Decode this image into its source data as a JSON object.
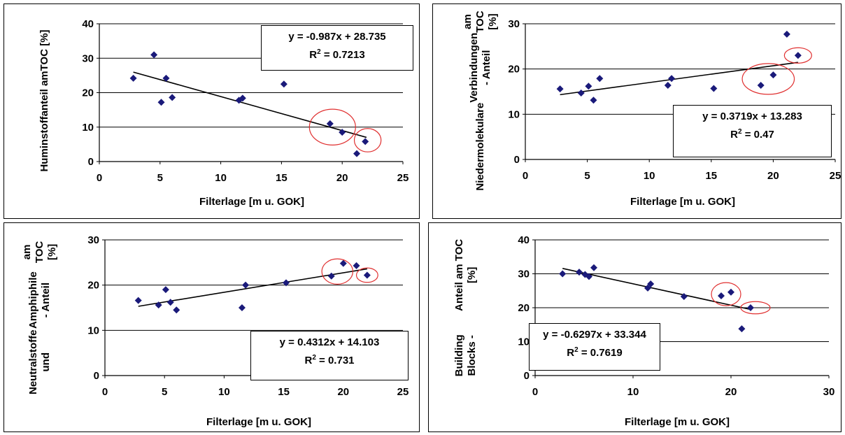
{
  "chart_data": [
    {
      "type": "scatter",
      "ylabel": [
        "Huminstoffanteil am",
        "TOC  [%]"
      ],
      "xlabel": "Filterlage [m u. GOK]",
      "xlim": [
        0,
        25
      ],
      "ylim": [
        0,
        40
      ],
      "xticks": [
        0,
        5,
        10,
        15,
        20,
        25
      ],
      "yticks": [
        0,
        10,
        20,
        30,
        40
      ],
      "x": [
        2.8,
        4.5,
        5.1,
        5.5,
        6.0,
        11.5,
        11.8,
        15.2,
        19.0,
        20.0,
        21.2,
        21.9
      ],
      "y": [
        24.2,
        31.0,
        17.2,
        24.2,
        18.6,
        17.8,
        18.4,
        22.5,
        11.0,
        8.5,
        2.3,
        5.8
      ],
      "trendline": {
        "slope": -0.987,
        "intercept": 28.735,
        "x_range": [
          2.8,
          22
        ]
      },
      "equation": "y = -0.987x + 28.735",
      "r2_label": "R",
      "r2_exp": "2",
      "r2_value": " = 0.7213",
      "highlights": [
        {
          "cx": 19.2,
          "cy": 10.0,
          "rx": 1.9,
          "ry": 5.2
        },
        {
          "cx": 22.1,
          "cy": 6.2,
          "rx": 1.1,
          "ry": 3.4
        }
      ],
      "colors": {
        "marker": "#1a1a7a",
        "trend": "#000000",
        "highlight": "#e03030",
        "grid": "#000000"
      }
    },
    {
      "type": "scatter",
      "ylabel": [
        "Niedermolekulare",
        "Verbindungen - Anteil",
        "am TOC  [%]"
      ],
      "xlabel": "Filterlage [m u. GOK]",
      "xlim": [
        0,
        25
      ],
      "ylim": [
        0,
        30
      ],
      "xticks": [
        0,
        5,
        10,
        15,
        20,
        25
      ],
      "yticks": [
        0,
        10,
        20,
        30
      ],
      "x": [
        2.8,
        4.5,
        5.1,
        5.5,
        6.0,
        11.5,
        11.8,
        15.2,
        19.0,
        20.0,
        21.1,
        22.0
      ],
      "y": [
        15.6,
        14.7,
        16.2,
        13.1,
        17.9,
        16.4,
        17.9,
        15.7,
        16.4,
        18.7,
        27.7,
        23.0
      ],
      "trendline": {
        "slope": 0.3719,
        "intercept": 13.283,
        "x_range": [
          2.8,
          22
        ]
      },
      "equation": "y = 0.3719x + 13.283",
      "r2_label": "R",
      "r2_exp": "2",
      "r2_value": " = 0.47",
      "highlights": [
        {
          "cx": 19.6,
          "cy": 17.8,
          "rx": 2.1,
          "ry": 3.4
        },
        {
          "cx": 22.0,
          "cy": 23.0,
          "rx": 1.1,
          "ry": 1.7
        }
      ],
      "colors": {
        "marker": "#1a1a7a",
        "trend": "#000000",
        "highlight": "#e03030",
        "grid": "#000000"
      }
    },
    {
      "type": "scatter",
      "ylabel": [
        "Neutralstoffe und",
        "Amphiphile - Anteil",
        "am TOC  [%]"
      ],
      "xlabel": "Filterlage [m u. GOK]",
      "xlim": [
        0,
        25
      ],
      "ylim": [
        0,
        30
      ],
      "xticks": [
        0,
        5,
        10,
        15,
        20,
        25
      ],
      "yticks": [
        0,
        10,
        20,
        30
      ],
      "x": [
        2.8,
        4.5,
        5.1,
        5.5,
        6.0,
        11.5,
        11.8,
        15.2,
        19.0,
        20.0,
        21.1,
        22.0
      ],
      "y": [
        16.6,
        15.6,
        19.0,
        16.2,
        14.5,
        15.0,
        20.0,
        20.5,
        22.0,
        24.8,
        24.3,
        22.2
      ],
      "trendline": {
        "slope": 0.4312,
        "intercept": 14.103,
        "x_range": [
          2.8,
          22
        ]
      },
      "equation": "y = 0.4312x + 14.103",
      "r2_label": "R",
      "r2_exp": "2",
      "r2_value": " = 0.731",
      "highlights": [
        {
          "cx": 19.5,
          "cy": 23.0,
          "rx": 1.3,
          "ry": 2.8
        },
        {
          "cx": 22.0,
          "cy": 22.2,
          "rx": 0.9,
          "ry": 1.6
        }
      ],
      "colors": {
        "marker": "#1a1a7a",
        "trend": "#000000",
        "highlight": "#e03030",
        "grid": "#000000"
      }
    },
    {
      "type": "scatter",
      "ylabel": [
        "Building Blocks -",
        "Anteil am TOC  [%]"
      ],
      "xlabel": "Filterlage [m u. GOK]",
      "xlim": [
        0,
        30
      ],
      "ylim": [
        0,
        40
      ],
      "xticks": [
        0,
        10,
        20,
        30
      ],
      "yticks": [
        0,
        10,
        20,
        30,
        40
      ],
      "x": [
        2.8,
        4.5,
        5.1,
        5.5,
        6.0,
        11.5,
        11.8,
        15.2,
        19.0,
        20.0,
        21.1,
        22.0
      ],
      "y": [
        30.0,
        30.5,
        29.8,
        29.2,
        31.8,
        25.8,
        27.0,
        23.3,
        23.5,
        24.6,
        13.8,
        20.0
      ],
      "trendline": {
        "slope": -0.6297,
        "intercept": 33.344,
        "x_range": [
          2.8,
          22
        ]
      },
      "equation": "y = -0.6297x + 33.344",
      "r2_label": "R",
      "r2_exp": "2",
      "r2_value": " = 0.7619",
      "highlights": [
        {
          "cx": 19.5,
          "cy": 24.0,
          "rx": 1.5,
          "ry": 3.4
        },
        {
          "cx": 22.5,
          "cy": 20.0,
          "rx": 1.5,
          "ry": 1.8
        }
      ],
      "colors": {
        "marker": "#1a1a7a",
        "trend": "#000000",
        "highlight": "#e03030",
        "grid": "#000000"
      }
    }
  ]
}
